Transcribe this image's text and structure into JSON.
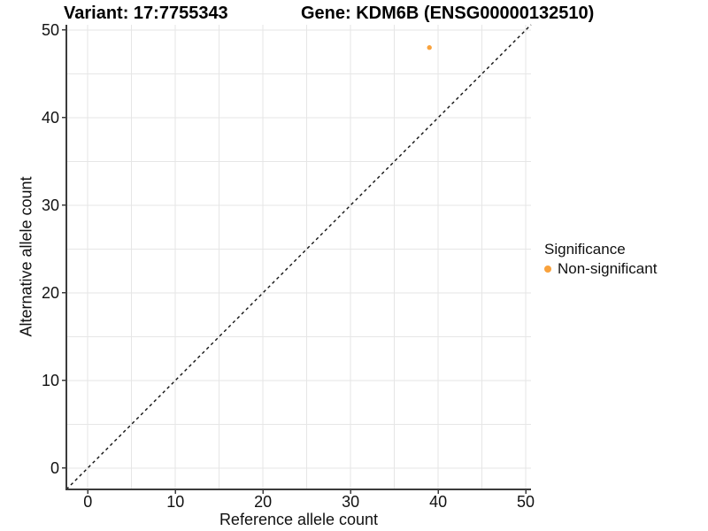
{
  "header": {
    "variant_title": "Variant: 17:7755343",
    "gene_title": "Gene: KDM6B (ENSG00000132510)"
  },
  "axes": {
    "x_title": "Reference allele count",
    "y_title": "Alternative allele count"
  },
  "legend": {
    "title": "Significance",
    "items": [
      {
        "label": "Non-significant",
        "color": "#F9A23C",
        "marker": "circle"
      }
    ]
  },
  "style": {
    "background": "#ffffff",
    "grid_color": "#e6e6e6",
    "axis_color": "#3c3c3c",
    "tick_label_color": "#111111",
    "identity_line_color": "#111111"
  },
  "chart_data": {
    "type": "scatter",
    "title": "Variant: 17:7755343 / Gene: KDM6B (ENSG00000132510)",
    "xlabel": "Reference allele count",
    "ylabel": "Alternative allele count",
    "x_ticks": [
      0,
      10,
      20,
      30,
      40,
      50
    ],
    "y_ticks": [
      0,
      10,
      20,
      30,
      40,
      50
    ],
    "tick_range": [
      0,
      50
    ],
    "minor_grid_step": 5,
    "panel_domain_x": [
      -2.45,
      50.6
    ],
    "panel_domain_y": [
      -2.45,
      50.6
    ],
    "grid": true,
    "legend_position": "right",
    "series": [
      {
        "name": "Non-significant",
        "color": "#F9A23C",
        "points": [
          {
            "x": 39,
            "y": 48
          }
        ]
      }
    ],
    "identity_line": {
      "type": "y=x",
      "style": "dashed",
      "color": "#111111"
    }
  }
}
